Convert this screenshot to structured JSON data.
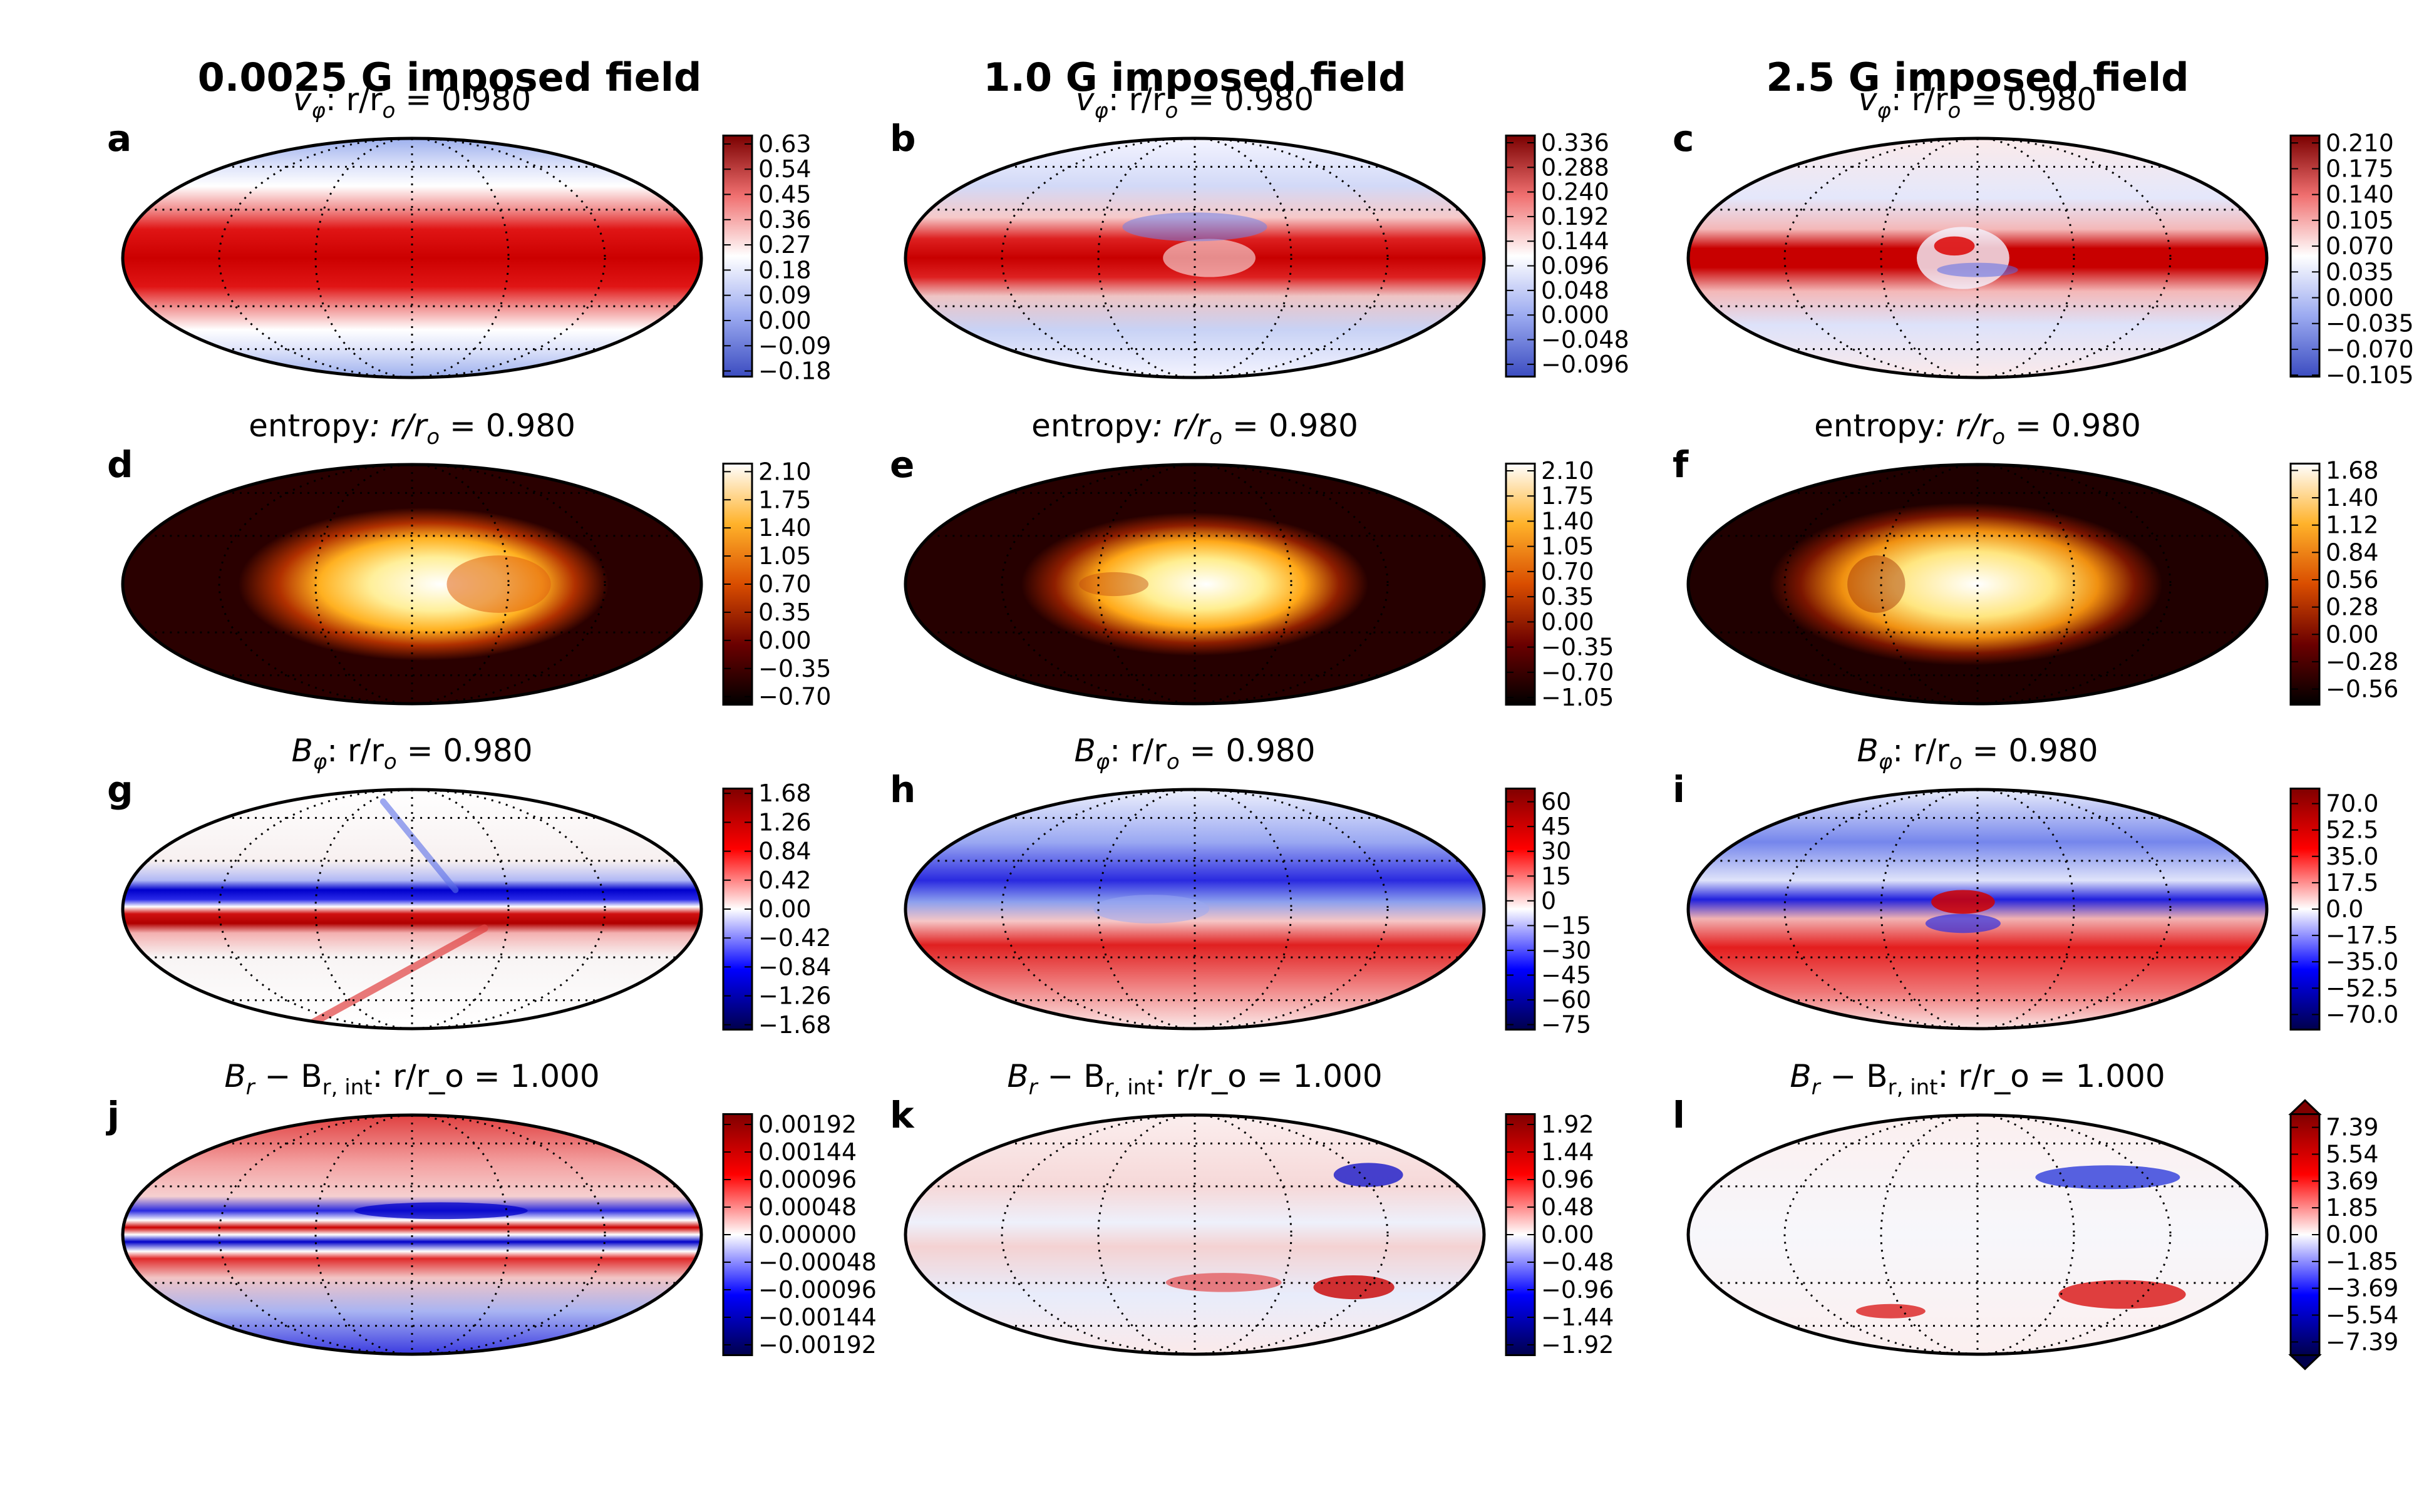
{
  "columns": [
    {
      "title": "0.0025 G imposed field"
    },
    {
      "title": "1.0 G imposed field"
    },
    {
      "title": "2.5 G imposed field"
    }
  ],
  "chart_data": [
    {
      "type": "heatmap",
      "projection": "mollweide",
      "panel": "a",
      "var": "vphi",
      "field_strength": "0.0025 G",
      "radius_label": "0.980",
      "title": {
        "sym": "v",
        "sub": "φ",
        "rest": ": r/r",
        "sub2": "o",
        "eq": " = 0.980"
      },
      "colormap": "bwr",
      "ticks": [
        "0.63",
        "0.54",
        "0.45",
        "0.36",
        "0.27",
        "0.18",
        "0.09",
        "0.00",
        "−0.09",
        "−0.18"
      ],
      "vmin": -0.2,
      "vmax": 0.66
    },
    {
      "type": "heatmap",
      "projection": "mollweide",
      "panel": "b",
      "var": "vphi",
      "field_strength": "1.0 G",
      "radius_label": "0.980",
      "title": {
        "sym": "v",
        "sub": "φ",
        "rest": ": r/r",
        "sub2": "o",
        "eq": " = 0.980"
      },
      "colormap": "bwr",
      "ticks": [
        "0.336",
        "0.288",
        "0.240",
        "0.192",
        "0.144",
        "0.096",
        "0.048",
        "0.000",
        "−0.048",
        "−0.096"
      ],
      "vmin": -0.12,
      "vmax": 0.35
    },
    {
      "type": "heatmap",
      "projection": "mollweide",
      "panel": "c",
      "var": "vphi",
      "field_strength": "2.5 G",
      "radius_label": "0.980",
      "title": {
        "sym": "v",
        "sub": "φ",
        "rest": ": r/r",
        "sub2": "o",
        "eq": " = 0.980"
      },
      "colormap": "bwr",
      "ticks": [
        "0.210",
        "0.175",
        "0.140",
        "0.105",
        "0.070",
        "0.035",
        "0.000",
        "−0.035",
        "−0.070",
        "−0.105"
      ],
      "vmin": -0.107,
      "vmax": 0.22
    },
    {
      "type": "heatmap",
      "projection": "mollweide",
      "panel": "d",
      "var": "entropy",
      "field_strength": "0.0025 G",
      "radius_label": "0.980",
      "title": {
        "sym": "entropy",
        "sub": "",
        "rest": ": r/r",
        "sub2": "o",
        "eq": " = 0.980"
      },
      "colormap": "afmhot",
      "ticks": [
        "2.10",
        "1.75",
        "1.40",
        "1.05",
        "0.70",
        "0.35",
        "0.00",
        "−0.35",
        "−0.70"
      ],
      "vmin": -0.8,
      "vmax": 2.2
    },
    {
      "type": "heatmap",
      "projection": "mollweide",
      "panel": "e",
      "var": "entropy",
      "field_strength": "1.0 G",
      "radius_label": "0.980",
      "title": {
        "sym": "entropy",
        "sub": "",
        "rest": ": r/r",
        "sub2": "o",
        "eq": " = 0.980"
      },
      "colormap": "afmhot",
      "ticks": [
        "2.10",
        "1.75",
        "1.40",
        "1.05",
        "0.70",
        "0.35",
        "0.00",
        "−0.35",
        "−0.70",
        "−1.05"
      ],
      "vmin": -1.15,
      "vmax": 2.2
    },
    {
      "type": "heatmap",
      "projection": "mollweide",
      "panel": "f",
      "var": "entropy",
      "field_strength": "2.5 G",
      "radius_label": "0.980",
      "title": {
        "sym": "entropy",
        "sub": "",
        "rest": ": r/r",
        "sub2": "o",
        "eq": " = 0.980"
      },
      "colormap": "afmhot",
      "ticks": [
        "1.68",
        "1.40",
        "1.12",
        "0.84",
        "0.56",
        "0.28",
        "0.00",
        "−0.28",
        "−0.56"
      ],
      "vmin": -0.72,
      "vmax": 1.75
    },
    {
      "type": "heatmap",
      "projection": "mollweide",
      "panel": "g",
      "var": "Bphi",
      "field_strength": "0.0025 G",
      "radius_label": "0.980",
      "title": {
        "sym": "B",
        "sub": "φ",
        "rest": ": r/r",
        "sub2": "o",
        "eq": " = 0.980"
      },
      "colormap": "seismic",
      "ticks": [
        "1.68",
        "1.26",
        "0.84",
        "0.42",
        "0.00",
        "−0.42",
        "−0.84",
        "−1.26",
        "−1.68"
      ],
      "vmin": -1.75,
      "vmax": 1.75
    },
    {
      "type": "heatmap",
      "projection": "mollweide",
      "panel": "h",
      "var": "Bphi",
      "field_strength": "1.0 G",
      "radius_label": "0.980",
      "title": {
        "sym": "B",
        "sub": "φ",
        "rest": ": r/r",
        "sub2": "o",
        "eq": " = 0.980"
      },
      "colormap": "seismic",
      "ticks": [
        "60",
        "45",
        "30",
        "15",
        "0",
        "−15",
        "−30",
        "−45",
        "−60",
        "−75"
      ],
      "vmin": -78,
      "vmax": 68
    },
    {
      "type": "heatmap",
      "projection": "mollweide",
      "panel": "i",
      "var": "Bphi",
      "field_strength": "2.5 G",
      "radius_label": "0.980",
      "title": {
        "sym": "B",
        "sub": "φ",
        "rest": ": r/r",
        "sub2": "o",
        "eq": " = 0.980"
      },
      "colormap": "seismic",
      "ticks": [
        "70.0",
        "52.5",
        "35.0",
        "17.5",
        "0.0",
        "−17.5",
        "−35.0",
        "−52.5",
        "−70.0"
      ],
      "vmin": -80,
      "vmax": 80
    },
    {
      "type": "heatmap",
      "projection": "mollweide",
      "panel": "j",
      "var": "Br-Br,int",
      "field_strength": "0.0025 G",
      "radius_label": "1.000",
      "title": {
        "sym": "B",
        "sub": "r",
        "rest": " − B",
        "sub2": "r, int",
        "eq": ": r/r_o = 1.000"
      },
      "colormap": "seismic",
      "ticks": [
        "0.00192",
        "0.00144",
        "0.00096",
        "0.00048",
        "0.00000",
        "−0.00048",
        "−0.00096",
        "−0.00144",
        "−0.00192"
      ],
      "vmin": -0.0021,
      "vmax": 0.0021
    },
    {
      "type": "heatmap",
      "projection": "mollweide",
      "panel": "k",
      "var": "Br-Br,int",
      "field_strength": "1.0 G",
      "radius_label": "1.000",
      "title": {
        "sym": "B",
        "sub": "r",
        "rest": " − B",
        "sub2": "r, int",
        "eq": ": r/r_o = 1.000"
      },
      "colormap": "seismic",
      "ticks": [
        "1.92",
        "1.44",
        "0.96",
        "0.48",
        "0.00",
        "−0.48",
        "−0.96",
        "−1.44",
        "−1.92"
      ],
      "vmin": -2.1,
      "vmax": 2.1
    },
    {
      "type": "heatmap",
      "projection": "mollweide",
      "panel": "l",
      "var": "Br-Br,int",
      "field_strength": "2.5 G",
      "radius_label": "1.000",
      "colorbar_extend": "both",
      "title": {
        "sym": "B",
        "sub": "r",
        "rest": " − B",
        "sub2": "r, int",
        "eq": ": r/r_o = 1.000"
      },
      "colormap": "seismic",
      "ticks": [
        "7.39",
        "5.54",
        "3.69",
        "1.85",
        "0.00",
        "−1.85",
        "−3.69",
        "−5.54",
        "−7.39"
      ],
      "vmin": -8.3,
      "vmax": 8.3
    }
  ]
}
